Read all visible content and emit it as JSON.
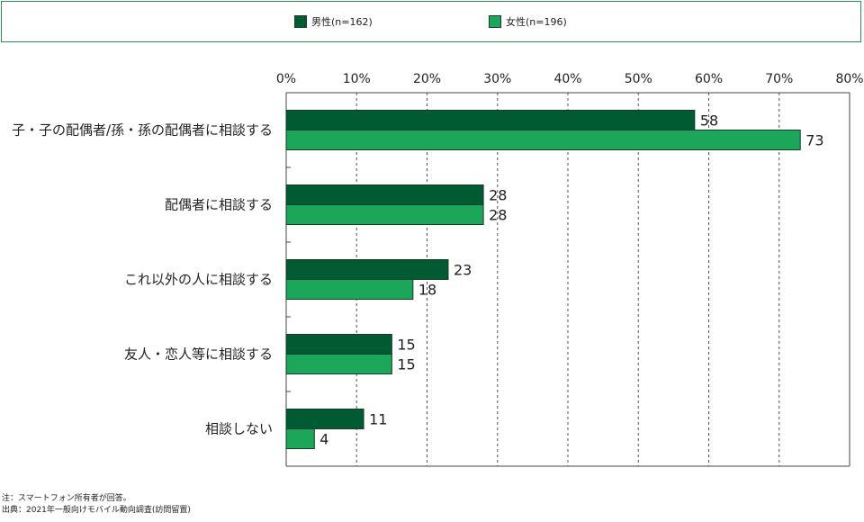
{
  "legend": {
    "items": [
      {
        "label": "男性(n=162)",
        "color": "#005a32"
      },
      {
        "label": "女性(n=196)",
        "color": "#1ba65a"
      }
    ]
  },
  "notes": {
    "line1": "注：スマートフォン所有者が回答。",
    "line2": "出典：2021年一般向けモバイル動向調査(訪問留置)"
  },
  "chart_data": {
    "type": "bar",
    "orientation": "horizontal",
    "categories": [
      "子・子の配偶者/孫・孫の配偶者に相談する",
      "配偶者に相談する",
      "これ以外の人に相談する",
      "友人・恋人等に相談する",
      "相談しない"
    ],
    "series": [
      {
        "name": "男性(n=162)",
        "values": [
          58,
          28,
          23,
          15,
          11
        ],
        "color": "#005a32"
      },
      {
        "name": "女性(n=196)",
        "values": [
          73,
          28,
          18,
          15,
          4
        ],
        "color": "#1ba65a"
      }
    ],
    "xlim": [
      0,
      80
    ],
    "xticks": [
      "0%",
      "10%",
      "20%",
      "30%",
      "40%",
      "50%",
      "60%",
      "70%",
      "80%"
    ],
    "grid": "vertical dashed",
    "legend_position": "top"
  }
}
